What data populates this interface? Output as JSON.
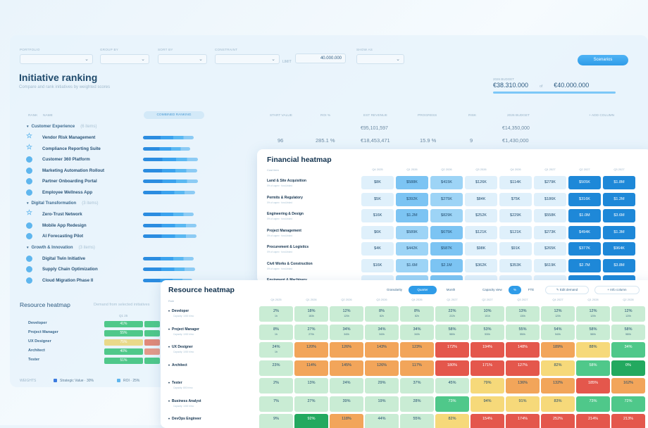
{
  "filters": [
    {
      "label": "PORTFOLIO",
      "value": ""
    },
    {
      "label": "GROUP BY",
      "value": ""
    },
    {
      "label": "SORT BY",
      "value": ""
    },
    {
      "label": "CONSTRAINT",
      "value": "",
      "limit_label": "LIMIT",
      "limit_value": "40.000.000"
    },
    {
      "label": "SHOW AS",
      "value": ""
    }
  ],
  "scenarios_label": "Scenarios",
  "page": {
    "title": "Initiative ranking",
    "subtitle": "Compare and rank initiatives by weighted scores"
  },
  "budget": {
    "label": "2026 BUDGET",
    "used": "€38.310.000",
    "of": "of",
    "total": "€40.000.000"
  },
  "ranking": {
    "headers": {
      "rank": "RANK",
      "name": "NAME",
      "combined": "COMBINED RANKING",
      "start": "START VALUE",
      "roi": "ROI %",
      "revenue": "EST REVENUE",
      "progress": "PROGRESS",
      "risk": "RISK",
      "budget": "2026 BUDGET",
      "add": "+ ADD COLUMN"
    },
    "groups": [
      {
        "name": "Customer Experience",
        "count": "(6 items)",
        "revenue": "€95,101,597",
        "budget": "€14,350,000",
        "items": [
          {
            "name": "Vendor Risk Management",
            "icon": "star-icon",
            "bar": 0.9
          },
          {
            "name": "Compliance Reporting Suite",
            "icon": "star-icon",
            "bar": 0.84
          },
          {
            "name": "Customer 360 Platform",
            "icon": "circle-icon",
            "bar": 0.98
          },
          {
            "name": "Marketing Automation Rollout",
            "icon": "circle-icon",
            "bar": 0.96
          },
          {
            "name": "Partner Onboarding Portal",
            "icon": "circle-icon",
            "bar": 0.97
          },
          {
            "name": "Employee Wellness App",
            "icon": "circle-icon",
            "bar": 0.92
          }
        ],
        "first_row": {
          "start": "96",
          "roi": "285.1 %",
          "revenue": "€18,453,471",
          "progress": "15.9 %",
          "risk": "9",
          "budget": "€1,430,000"
        }
      },
      {
        "name": "Digital Transformation",
        "count": "(3 items)",
        "items": [
          {
            "name": "Zero-Trust Network",
            "icon": "star-icon",
            "bar": 0.9
          },
          {
            "name": "Mobile App Redesign",
            "icon": "circle-icon",
            "bar": 0.95
          },
          {
            "name": "AI Forecasting Pilot",
            "icon": "circle-icon",
            "bar": 0.95
          }
        ]
      },
      {
        "name": "Growth & Innovation",
        "count": "(3 items)",
        "items": [
          {
            "name": "Digital Twin Initiative",
            "icon": "circle-icon",
            "bar": 0.9
          },
          {
            "name": "Supply Chain Optimization",
            "icon": "circle-icon",
            "bar": 0.92
          },
          {
            "name": "Cloud Migration Phase II",
            "icon": "circle-icon",
            "bar": 0.88
          }
        ]
      }
    ]
  },
  "resource_mini": {
    "title": "Resource heatmap",
    "demand": "Demand from selected initiatives",
    "col": "Q1 25",
    "rows": [
      {
        "name": "Developer",
        "sub": "",
        "value": "41%",
        "color": "#4fc88a"
      },
      {
        "name": "Project Manager",
        "sub": "",
        "value": "55%",
        "color": "#4fc88a"
      },
      {
        "name": "UX Designer",
        "sub": "",
        "value": "75%",
        "color": "#e9d98a"
      },
      {
        "name": "Architect",
        "sub": "",
        "value": "40%",
        "color": "#4fc88a"
      },
      {
        "name": "Tester",
        "sub": "",
        "value": "51%",
        "color": "#4fc88a"
      }
    ]
  },
  "weights": {
    "label": "WEIGHTS",
    "items": [
      {
        "label": "Strategic Value · 30%",
        "color": "#3b7be0"
      },
      {
        "label": "ROI · 25%",
        "color": "#5fb6ee"
      }
    ]
  },
  "financial": {
    "title": "Financial heatmap",
    "cost_label": "Cost item",
    "quarters": [
      "Q4 2025",
      "Q1 2026",
      "Q2 2026",
      "Q3 2026",
      "Q4 2026",
      "Q1 2027",
      "Q2 2027",
      "Q3 2027"
    ],
    "rows": [
      {
        "name": "Land & Site Acquisition",
        "sub": "0% of capex · fund-linked",
        "values": [
          "$8K",
          "$588K",
          "$415K",
          "$126K",
          "$114K",
          "$279K",
          "$505K",
          "$1.8M"
        ],
        "levels": [
          1,
          3,
          2,
          1,
          1,
          1,
          4,
          4
        ]
      },
      {
        "name": "Permits & Regulatory",
        "sub": "0% of capex · fund-linked",
        "values": [
          "$5K",
          "$392K",
          "$275K",
          "$84K",
          "$75K",
          "$186K",
          "$316K",
          "$1.2M"
        ],
        "levels": [
          1,
          3,
          2,
          1,
          1,
          1,
          4,
          4
        ]
      },
      {
        "name": "Engineering & Design",
        "sub": "0% of capex · fund-linked",
        "values": [
          "$16K",
          "$1.2M",
          "$829K",
          "$252K",
          "$229K",
          "$558K",
          "$1.0M",
          "$3.6M"
        ],
        "levels": [
          1,
          3,
          2,
          1,
          1,
          1,
          4,
          4
        ]
      },
      {
        "name": "Project Management",
        "sub": "0% of capex · fund-linked",
        "values": [
          "$6K",
          "$589K",
          "$675K",
          "$121K",
          "$121K",
          "$273K",
          "$494K",
          "$1.3M"
        ],
        "levels": [
          1,
          2,
          3,
          1,
          1,
          1,
          4,
          4
        ]
      },
      {
        "name": "Procurement & Logistics",
        "sub": "0% of capex · fund-linked",
        "values": [
          "$4K",
          "$442K",
          "$587K",
          "$98K",
          "$91K",
          "$265K",
          "$377K",
          "$964K"
        ],
        "levels": [
          1,
          2,
          3,
          1,
          1,
          1,
          4,
          4
        ]
      },
      {
        "name": "Civil Works & Construction",
        "sub": "0% of capex · fund-linked",
        "values": [
          "$16K",
          "$1.6M",
          "$2.1M",
          "$362K",
          "$353K",
          "$619K",
          "$2.7M",
          "$3.8M"
        ],
        "levels": [
          1,
          2,
          3,
          1,
          1,
          1,
          4,
          4
        ]
      },
      {
        "name": "Equipment & Machinery",
        "sub": "",
        "values": [
          "",
          "",
          "",
          "",
          "",
          "",
          "",
          ""
        ],
        "levels": [
          1,
          2,
          3,
          1,
          1,
          1,
          4,
          4
        ]
      }
    ]
  },
  "resource": {
    "title": "Resource heatmap",
    "granularity_label": "Granularity",
    "granularity_options": [
      "Quarter",
      "Month"
    ],
    "capacity_label": "Capacity view",
    "capacity_options": [
      "%",
      "FTE"
    ],
    "edit_demand": "✎ Edit demand",
    "info_column": "+ Info column",
    "role_label": "Role",
    "quarters": [
      "Q4 2025",
      "Q1 2026",
      "Q2 2026",
      "Q3 2026",
      "Q4 2026",
      "Q1 2027",
      "Q2 2027",
      "Q3 2027",
      "Q4 2027",
      "Q1 2028",
      "Q2 2028"
    ],
    "rows": [
      {
        "name": "Developer",
        "sub": "Capacity: 1000 h/mo",
        "values": [
          "2%",
          "18%",
          "12%",
          "8%",
          "8%",
          "22%",
          "10%",
          "13%",
          "12%",
          "12%",
          "12%"
        ],
        "hours": [
          "1h",
          "183h",
          "120h",
          "82h",
          "82h",
          "222h",
          "101h",
          "130h",
          "120h",
          "120h",
          "120h"
        ],
        "levels": [
          1,
          1,
          1,
          1,
          1,
          1,
          1,
          1,
          1,
          1,
          1
        ]
      },
      {
        "name": "Project Manager",
        "sub": "Capacity: 1000 h/mo",
        "values": [
          "8%",
          "27%",
          "34%",
          "34%",
          "34%",
          "58%",
          "53%",
          "55%",
          "54%",
          "58%",
          "58%"
        ],
        "hours": [
          "1h",
          "270h",
          "340h",
          "340h",
          "340h",
          "580h",
          "530h",
          "550h",
          "540h",
          "580h",
          "580h"
        ],
        "levels": [
          1,
          1,
          1,
          1,
          1,
          1,
          1,
          1,
          1,
          1,
          1
        ]
      },
      {
        "name": "UX Designer",
        "sub": "Capacity: 1000 h/mo",
        "values": [
          "24%",
          "120%",
          "126%",
          "143%",
          "123%",
          "172%",
          "194%",
          "148%",
          "189%",
          "88%",
          "34%"
        ],
        "hours": [
          "1h",
          "",
          "",
          "",
          "",
          "",
          "",
          "",
          "",
          "",
          ""
        ],
        "levels": [
          1,
          5,
          5,
          5,
          5,
          6,
          6,
          6,
          5,
          4,
          2
        ]
      },
      {
        "name": "Architect",
        "sub": "",
        "values": [
          "23%",
          "114%",
          "145%",
          "126%",
          "117%",
          "180%",
          "171%",
          "127%",
          "82%",
          "58%",
          "0%"
        ],
        "hours": [
          "",
          "",
          "",
          "",
          "",
          "",
          "",
          "",
          "",
          "",
          ""
        ],
        "levels": [
          1,
          5,
          5,
          5,
          5,
          6,
          6,
          6,
          4,
          2,
          3
        ]
      },
      {
        "name": "Tester",
        "sub": "Capacity: 800 h/mo",
        "values": [
          "2%",
          "13%",
          "24%",
          "29%",
          "37%",
          "45%",
          "79%",
          "136%",
          "132%",
          "185%",
          "162%"
        ],
        "hours": [
          "",
          "",
          "",
          "",
          "",
          "",
          "",
          "",
          "",
          "",
          ""
        ],
        "levels": [
          1,
          1,
          1,
          1,
          1,
          1,
          4,
          5,
          5,
          6,
          5
        ]
      },
      {
        "name": "Business Analyst",
        "sub": "Capacity: 1000 h/mo",
        "values": [
          "7%",
          "27%",
          "39%",
          "19%",
          "28%",
          "73%",
          "94%",
          "91%",
          "83%",
          "73%",
          "72%"
        ],
        "hours": [
          "",
          "",
          "",
          "",
          "",
          "",
          "",
          "",
          "",
          "",
          ""
        ],
        "levels": [
          1,
          1,
          1,
          1,
          1,
          2,
          4,
          4,
          4,
          2,
          2
        ]
      },
      {
        "name": "DevOps Engineer",
        "sub": "",
        "values": [
          "9%",
          "92%",
          "118%",
          "44%",
          "55%",
          "82%",
          "154%",
          "174%",
          "252%",
          "214%",
          "213%"
        ],
        "hours": [
          "",
          "",
          "",
          "",
          "",
          "",
          "",
          "",
          "",
          "",
          ""
        ],
        "levels": [
          1,
          3,
          5,
          1,
          1,
          4,
          6,
          6,
          6,
          6,
          6
        ]
      }
    ]
  },
  "colors": {
    "accent": "#2f9ce8",
    "fin_levels": [
      "#ffffff",
      "#dff0fb",
      "#9dd4f6",
      "#7cc4f3",
      "#1e88d8"
    ],
    "res_levels": [
      "#ffffff",
      "#c9ecd4",
      "#4fc88a",
      "#23a95f",
      "#f6d97a",
      "#f2a55a",
      "#e4574c"
    ]
  }
}
